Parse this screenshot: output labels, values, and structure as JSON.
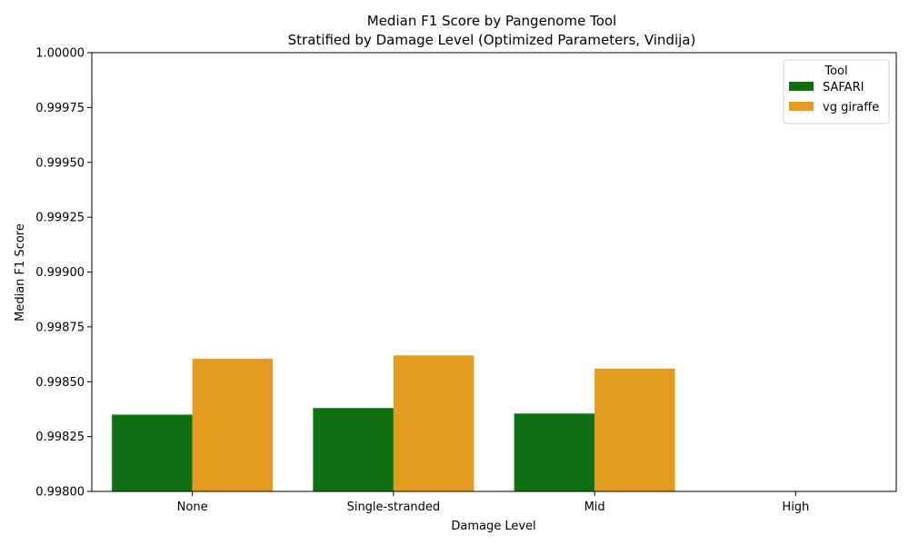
{
  "chart_data": {
    "type": "bar",
    "title": "Median F1 Score by Pangenome Tool",
    "subtitle": "Stratified by Damage Level (Optimized Parameters, Vindija)",
    "xlabel": "Damage Level",
    "ylabel": "Median F1 Score",
    "categories": [
      "None",
      "Single-stranded",
      "Mid",
      "High"
    ],
    "ylim": [
      0.998,
      1.0
    ],
    "yticks": [
      "0.99800",
      "0.99825",
      "0.99850",
      "0.99875",
      "0.99900",
      "0.99925",
      "0.99950",
      "0.99975",
      "1.00000"
    ],
    "grid": false,
    "legend": {
      "title": "Tool",
      "position": "top-right"
    },
    "series": [
      {
        "name": "SAFARI",
        "color": "#0e7011",
        "values": [
          0.99835,
          0.99838,
          0.998355,
          null
        ]
      },
      {
        "name": "vg giraffe",
        "color": "#e39c1f",
        "values": [
          0.998605,
          0.99862,
          0.99856,
          null
        ]
      }
    ]
  }
}
